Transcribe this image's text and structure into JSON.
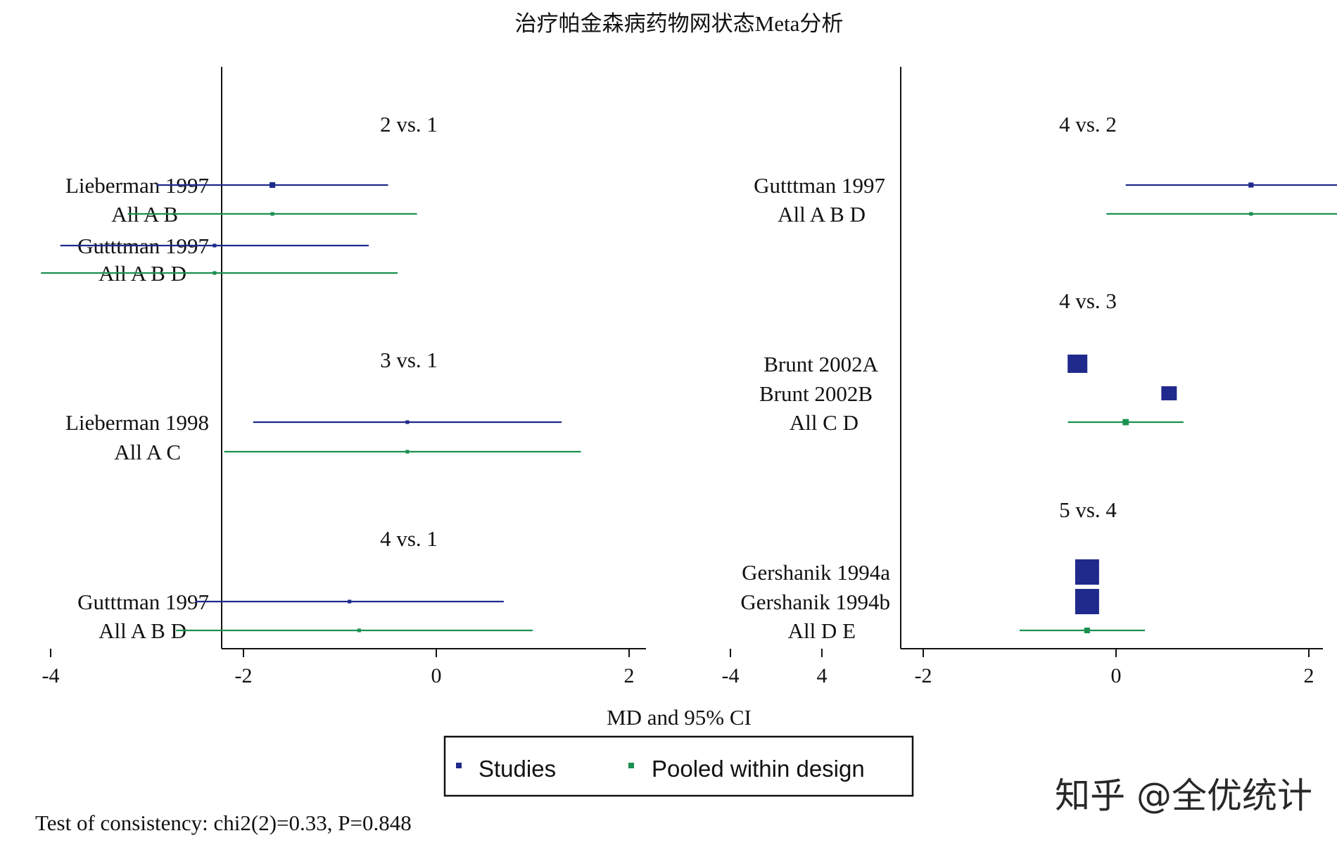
{
  "chart_data": {
    "type": "forest",
    "title": "治疗帕金森病药物网状态Meta分析",
    "xlabel": "MD and 95% CI",
    "xlim": [
      -4.5,
      4.3
    ],
    "xticks": [
      "-4",
      "-2",
      "0",
      "2",
      "4"
    ],
    "legend_placement": "bottom-center",
    "legend": [
      {
        "name": "Studies",
        "color": "#1f2a8c"
      },
      {
        "name": "Pooled within design",
        "color": "#1a9150"
      }
    ],
    "footnote": "Test of consistency: chi2(2)=0.33, P=0.848",
    "watermark": "知乎 @全优统计",
    "panels": [
      {
        "groups": [
          {
            "label": "2 vs. 1",
            "rows": [
              {
                "label": "Lieberman 1997",
                "kind": "study",
                "est": -1.7,
                "lo": -2.9,
                "hi": -0.5,
                "weight": 0.05
              },
              {
                "label": "All A B",
                "kind": "pooled",
                "est": -1.7,
                "lo": -3.2,
                "hi": -0.2,
                "weight": 0.02
              },
              {
                "label": "Gutttman 1997",
                "kind": "study",
                "est": -2.3,
                "lo": -3.9,
                "hi": -0.7,
                "weight": 0.02
              },
              {
                "label": "All A B D",
                "kind": "pooled",
                "est": -2.3,
                "lo": -4.1,
                "hi": -0.4,
                "weight": 0.02
              }
            ]
          },
          {
            "label": "3 vs. 1",
            "rows": [
              {
                "label": "Lieberman 1998",
                "kind": "study",
                "est": -0.3,
                "lo": -1.9,
                "hi": 1.3,
                "weight": 0.02
              },
              {
                "label": "All A C",
                "kind": "pooled",
                "est": -0.3,
                "lo": -2.2,
                "hi": 1.5,
                "weight": 0.02
              }
            ]
          },
          {
            "label": "4 vs. 1",
            "rows": [
              {
                "label": "Gutttman 1997",
                "kind": "study",
                "est": -0.9,
                "lo": -2.5,
                "hi": 0.7,
                "weight": 0.02
              },
              {
                "label": "All A B D",
                "kind": "pooled",
                "est": -0.8,
                "lo": -2.7,
                "hi": 1.0,
                "weight": 0.02
              }
            ]
          }
        ]
      },
      {
        "groups": [
          {
            "label": "4 vs. 2",
            "rows": [
              {
                "label": "Gutttman 1997",
                "kind": "study",
                "est": 1.4,
                "lo": 0.1,
                "hi": 2.6,
                "weight": 0.04
              },
              {
                "label": "All A B D",
                "kind": "pooled",
                "est": 1.4,
                "lo": -0.1,
                "hi": 2.9,
                "weight": 0.02
              }
            ]
          },
          {
            "label": "4 vs. 3",
            "rows": [
              {
                "label": "Brunt 2002A",
                "kind": "study",
                "est": -0.4,
                "lo": -0.6,
                "hi": -0.2,
                "weight": 0.7
              },
              {
                "label": "Brunt 2002B",
                "kind": "study",
                "est": 0.55,
                "lo": 0.4,
                "hi": 0.7,
                "weight": 0.55
              },
              {
                "label": "All C D",
                "kind": "pooled",
                "est": 0.1,
                "lo": -0.5,
                "hi": 0.7,
                "weight": 0.06
              }
            ]
          },
          {
            "label": "5 vs. 4",
            "rows": [
              {
                "label": "Gershanik 1994a",
                "kind": "study",
                "est": -0.3,
                "lo": -0.5,
                "hi": -0.1,
                "weight": 1.0
              },
              {
                "label": "Gershanik 1994b",
                "kind": "study",
                "est": -0.3,
                "lo": -0.5,
                "hi": -0.1,
                "weight": 1.0
              },
              {
                "label": "All D E",
                "kind": "pooled",
                "est": -0.3,
                "lo": -1.0,
                "hi": 0.3,
                "weight": 0.05
              }
            ]
          }
        ]
      }
    ]
  }
}
